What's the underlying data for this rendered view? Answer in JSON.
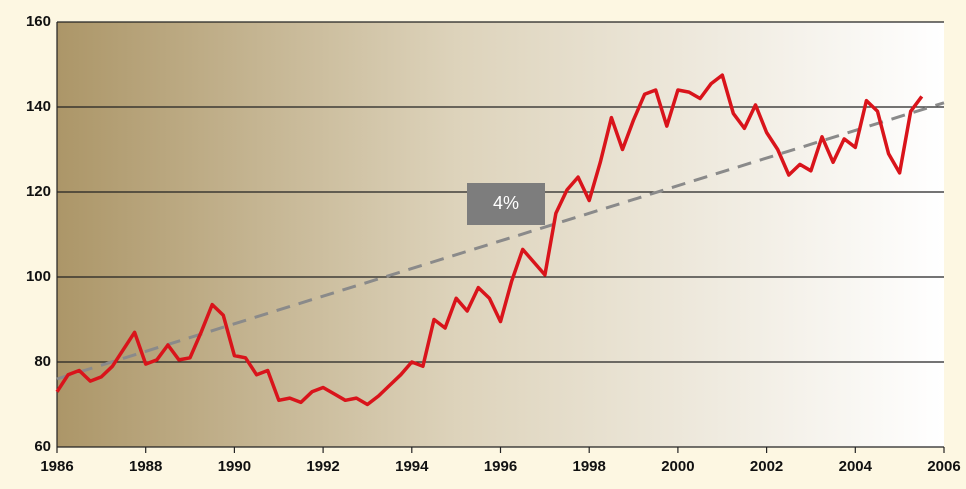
{
  "chart_data": {
    "type": "line",
    "x": [
      1986,
      1986.25,
      1986.5,
      1986.75,
      1987,
      1987.25,
      1987.5,
      1987.75,
      1988,
      1988.25,
      1988.5,
      1988.75,
      1989,
      1989.25,
      1989.5,
      1989.75,
      1990,
      1990.25,
      1990.5,
      1990.75,
      1991,
      1991.25,
      1991.5,
      1991.75,
      1992,
      1992.25,
      1992.5,
      1992.75,
      1993,
      1993.25,
      1993.5,
      1993.75,
      1994,
      1994.25,
      1994.5,
      1994.75,
      1995,
      1995.25,
      1995.5,
      1995.75,
      1996,
      1996.25,
      1996.5,
      1996.75,
      1997,
      1997.25,
      1997.5,
      1997.75,
      1998,
      1998.25,
      1998.5,
      1998.75,
      1999,
      1999.25,
      1999.5,
      1999.75,
      2000,
      2000.25,
      2000.5,
      2000.75,
      2001,
      2001.25,
      2001.5,
      2001.75,
      2002,
      2002.25,
      2002.5,
      2002.75,
      2003,
      2003.25,
      2003.5,
      2003.75,
      2004,
      2004.25,
      2004.5,
      2004.75,
      2005,
      2005.25,
      2005.5
    ],
    "series": [
      {
        "color": "#d9141b",
        "values": [
          73,
          77,
          78,
          75.5,
          76.5,
          79,
          83,
          87,
          79.5,
          80.5,
          84,
          80.5,
          81,
          87,
          93.5,
          91,
          81.5,
          81,
          77,
          78,
          71,
          71.5,
          70.5,
          73,
          74,
          72.5,
          71,
          71.5,
          70,
          72,
          74.5,
          77,
          80,
          79,
          90,
          88,
          95,
          92,
          97.5,
          95,
          89.5,
          99,
          106.5,
          103.5,
          100.5,
          115,
          120.5,
          123.5,
          118,
          127,
          137.5,
          130,
          137,
          143,
          144,
          135.5,
          144,
          143.5,
          142,
          145.5,
          147.5,
          138.5,
          135,
          140.5,
          134,
          130,
          124,
          126.5,
          125,
          133,
          127,
          132.5,
          130.5,
          141.5,
          139,
          129,
          124.5,
          139,
          142.5
        ]
      }
    ],
    "trend": {
      "color": "#8a8a8a",
      "x": [
        1986,
        2006
      ],
      "values": [
        76,
        141
      ]
    },
    "annotation": "4%",
    "xlim": [
      1986,
      2006
    ],
    "xticks": [
      1986,
      1988,
      1990,
      1992,
      1994,
      1996,
      1998,
      2000,
      2002,
      2004,
      2006
    ],
    "ylim": [
      60,
      160
    ],
    "yticks": [
      60,
      80,
      100,
      120,
      140,
      160
    ],
    "grid": true
  }
}
